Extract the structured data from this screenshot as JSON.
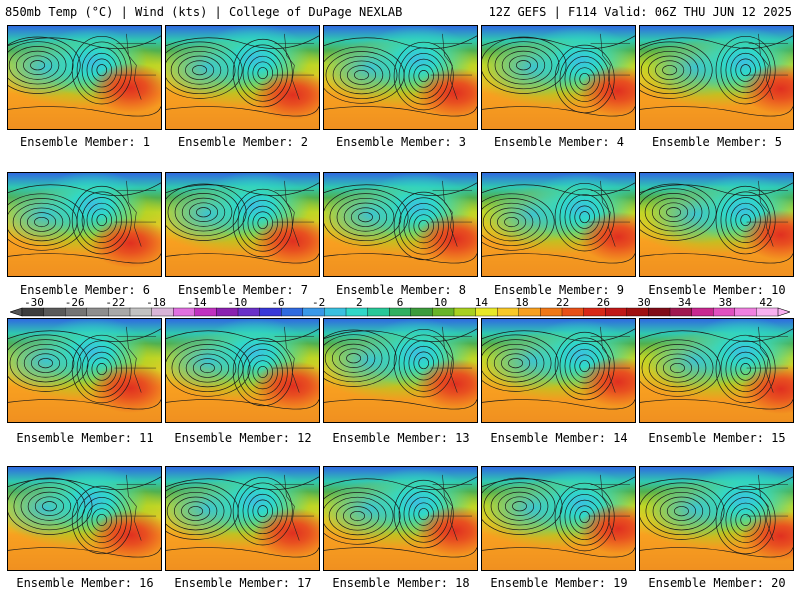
{
  "header": {
    "left_title": "850mb Temp (°C) | Wind (kts) | College of DuPage NEXLAB",
    "right_title": "12Z GEFS | F114 Valid: 06Z THU JUN 12 2025"
  },
  "panels": [
    {
      "label": "Ensemble Member: 1"
    },
    {
      "label": "Ensemble Member: 2"
    },
    {
      "label": "Ensemble Member: 3"
    },
    {
      "label": "Ensemble Member: 4"
    },
    {
      "label": "Ensemble Member: 5"
    },
    {
      "label": "Ensemble Member: 6"
    },
    {
      "label": "Ensemble Member: 7"
    },
    {
      "label": "Ensemble Member: 8"
    },
    {
      "label": "Ensemble Member: 9"
    },
    {
      "label": "Ensemble Member: 10"
    },
    {
      "label": "Ensemble Member: 11"
    },
    {
      "label": "Ensemble Member: 12"
    },
    {
      "label": "Ensemble Member: 13"
    },
    {
      "label": "Ensemble Member: 14"
    },
    {
      "label": "Ensemble Member: 15"
    },
    {
      "label": "Ensemble Member: 16"
    },
    {
      "label": "Ensemble Member: 17"
    },
    {
      "label": "Ensemble Member: 18"
    },
    {
      "label": "Ensemble Member: 19"
    },
    {
      "label": "Ensemble Member: 20"
    }
  ],
  "colorbar": {
    "labels": [
      "-30",
      "-26",
      "-22",
      "-18",
      "-14",
      "-10",
      "-6",
      "-2",
      "2",
      "6",
      "10",
      "14",
      "18",
      "22",
      "26",
      "30",
      "34",
      "38",
      "42"
    ],
    "colors": [
      "#3d3d3d",
      "#5a5a5a",
      "#747474",
      "#8e8e8e",
      "#a8a8a8",
      "#c2c2c2",
      "#d8b4d8",
      "#e070e0",
      "#c030c0",
      "#8a20b0",
      "#6a30c8",
      "#3838d8",
      "#2f6ae0",
      "#3a98e8",
      "#3ac0e0",
      "#30d8c8",
      "#28c898",
      "#30b060",
      "#3c9c3c",
      "#68b428",
      "#a8d020",
      "#e8e828",
      "#f8c828",
      "#f8a020",
      "#f07818",
      "#e85018",
      "#d82818",
      "#c01818",
      "#a01010",
      "#800c18",
      "#a01850",
      "#c82890",
      "#e050c0",
      "#f080e0",
      "#f8b0f0"
    ]
  }
}
